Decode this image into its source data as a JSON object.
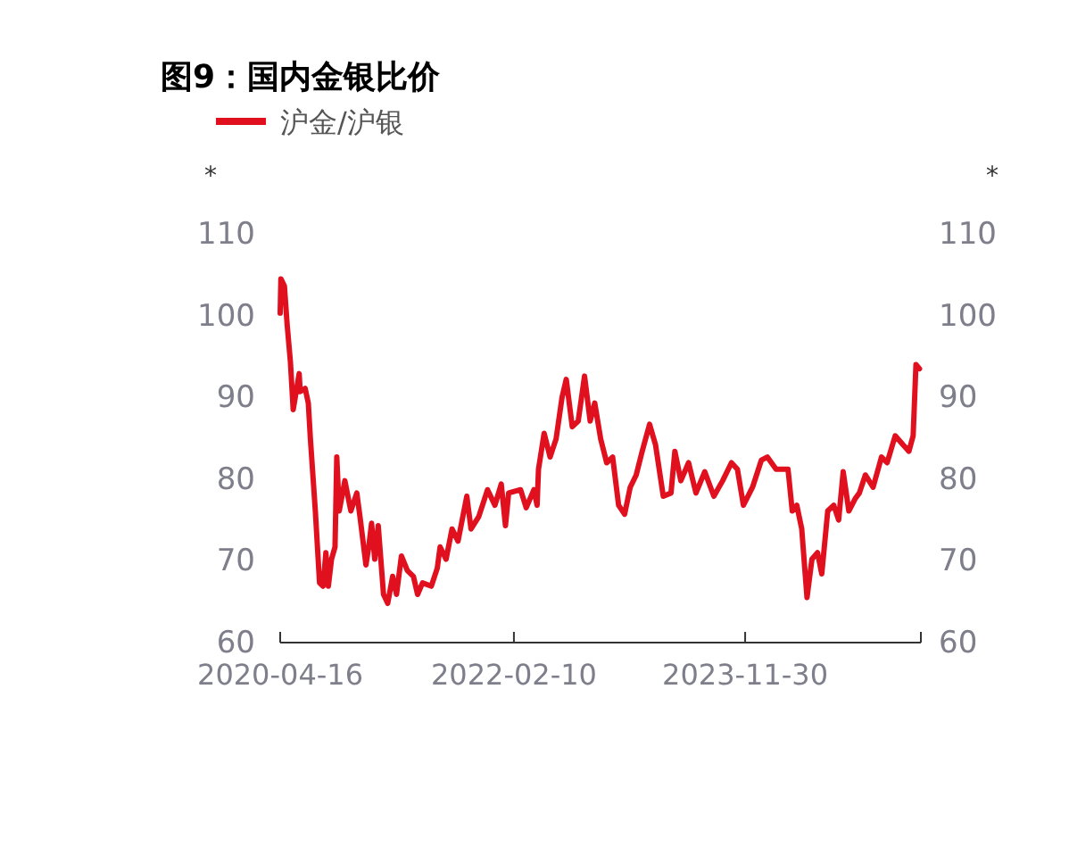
{
  "chart_data": {
    "type": "line",
    "title": "图9：国内金银比价",
    "ylabel": "*",
    "y2label": "*",
    "x": [
      "2020-04-16",
      "2020-04-18",
      "2020-04-28",
      "2020-05-06",
      "2020-05-15",
      "2020-05-23",
      "2020-06-09",
      "2020-06-12",
      "2020-06-26",
      "2020-07-05",
      "2020-07-11",
      "2020-07-25",
      "2020-08-06",
      "2020-08-16",
      "2020-08-24",
      "2020-08-31",
      "2020-09-09",
      "2020-09-19",
      "2020-09-24",
      "2020-10-01",
      "2020-10-17",
      "2020-11-03",
      "2020-11-20",
      "2020-11-29",
      "2020-12-16",
      "2020-12-24",
      "2021-01-01",
      "2021-01-10",
      "2021-01-20",
      "2021-02-04",
      "2021-02-16",
      "2021-03-02",
      "2021-03-13",
      "2021-03-27",
      "2021-04-13",
      "2021-04-30",
      "2021-05-12",
      "2021-05-26",
      "2021-06-20",
      "2021-07-07",
      "2021-07-15",
      "2021-08-01",
      "2021-08-18",
      "2021-09-04",
      "2021-09-29",
      "2021-10-11",
      "2021-11-02",
      "2021-11-27",
      "2021-12-18",
      "2022-01-05",
      "2022-01-17",
      "2022-01-26",
      "2022-03-01",
      "2022-03-17",
      "2022-04-08",
      "2022-04-17",
      "2022-04-21",
      "2022-05-07",
      "2022-05-24",
      "2022-06-10",
      "2022-06-27",
      "2022-07-09",
      "2022-07-26",
      "2022-08-12",
      "2022-08-30",
      "2022-09-15",
      "2022-09-28",
      "2022-10-15",
      "2022-11-01",
      "2022-11-18",
      "2022-12-05",
      "2022-12-22",
      "2023-01-07",
      "2023-01-24",
      "2023-02-10",
      "2023-03-03",
      "2023-03-20",
      "2023-04-11",
      "2023-05-03",
      "2023-05-14",
      "2023-05-31",
      "2023-06-22",
      "2023-07-13",
      "2023-08-07",
      "2023-09-02",
      "2023-09-27",
      "2023-10-22",
      "2023-11-08",
      "2023-11-25",
      "2023-12-21",
      "2024-01-15",
      "2024-02-01",
      "2024-02-26",
      "2024-03-31",
      "2024-04-12",
      "2024-04-25",
      "2024-05-09",
      "2024-05-24",
      "2024-06-07",
      "2024-06-23",
      "2024-07-05",
      "2024-07-22",
      "2024-08-08",
      "2024-08-22",
      "2024-09-04",
      "2024-09-20",
      "2024-10-08",
      "2024-10-20",
      "2024-11-06",
      "2024-11-28",
      "2024-12-22",
      "2025-01-07",
      "2025-01-30",
      "2025-02-21",
      "2025-03-10",
      "2025-03-22",
      "2025-03-30",
      "2025-04-09"
    ],
    "series": [
      {
        "name": "沪金/沪银",
        "color": "#e1101f",
        "values": [
          100.3,
          104.5,
          103.6,
          98.8,
          94.4,
          88.5,
          92.9,
          90.7,
          91.1,
          89.3,
          84.9,
          76.1,
          67.3,
          66.9,
          71,
          66.9,
          70.2,
          71.7,
          82.7,
          76.1,
          79.8,
          76.1,
          78.3,
          75.4,
          69.5,
          71.7,
          74.6,
          70.2,
          74.3,
          65.9,
          64.8,
          68.1,
          65.9,
          70.6,
          68.8,
          68.1,
          65.9,
          67.3,
          66.9,
          69.1,
          71.7,
          70.2,
          73.9,
          72.4,
          77.9,
          73.9,
          75.4,
          78.7,
          76.8,
          79.4,
          74.3,
          78.3,
          78.7,
          76.5,
          78.7,
          76.8,
          81.2,
          85.6,
          82.7,
          84.9,
          90,
          92.2,
          86.4,
          87.1,
          92.6,
          87.1,
          89.3,
          84.9,
          82,
          82.7,
          76.8,
          75.7,
          79,
          80.5,
          83.4,
          86.7,
          84.2,
          77.9,
          78.3,
          83.4,
          79.8,
          82,
          78.3,
          80.9,
          77.9,
          79.8,
          82,
          81.2,
          76.8,
          79,
          82.3,
          82.7,
          81.2,
          81.2,
          76.1,
          76.8,
          73.9,
          65.5,
          70.2,
          71,
          68.4,
          76.1,
          76.8,
          75,
          80.9,
          76.1,
          77.6,
          78.3,
          80.5,
          79,
          82.7,
          82,
          85.3,
          84.2,
          83.4,
          85.3,
          94,
          93.5
        ]
      }
    ],
    "xlim": [
      "2020-04-16",
      "2025-04-13"
    ],
    "xticks": [
      {
        "value": "2020-04-16",
        "label": "2020-04-16"
      },
      {
        "value": "2022-02-10",
        "label": "2022-02-10"
      },
      {
        "value": "2023-11-30",
        "label": "2023-11-30"
      },
      {
        "value": "2025-04-13",
        "label": null
      }
    ],
    "ylim": [
      60,
      110
    ],
    "yticks": [
      60,
      70,
      80,
      90,
      100,
      110
    ],
    "y2lim": [
      60,
      110
    ],
    "y2ticks": [
      60,
      70,
      80,
      90,
      100,
      110
    ],
    "grid": false,
    "legend": "top left",
    "line_style": "solid",
    "marker": "none"
  }
}
